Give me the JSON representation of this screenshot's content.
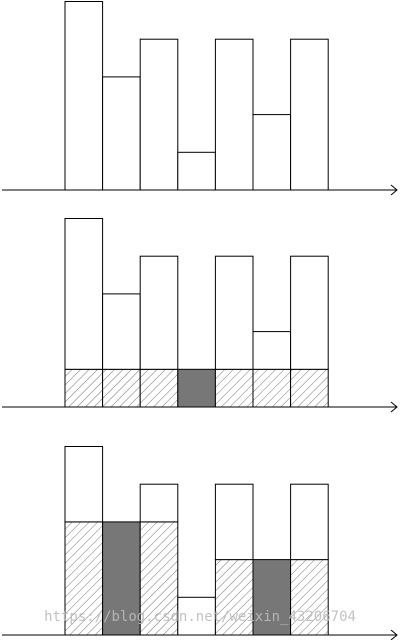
{
  "panels": [
    {
      "type": "stacked-bar",
      "series": [
        {
          "color": "#ffffff",
          "values": [
            5,
            3,
            4,
            1,
            4,
            2,
            4
          ]
        }
      ]
    },
    {
      "type": "stacked-bar",
      "series": [
        {
          "pattern": "hatch",
          "color": "#ffffff",
          "values": [
            1,
            1,
            1,
            0,
            1,
            1,
            1
          ]
        },
        {
          "color": "#777777",
          "values": [
            0,
            0,
            0,
            1,
            0,
            0,
            0
          ]
        },
        {
          "color": "#ffffff",
          "values": [
            4,
            2,
            3,
            0,
            3,
            1,
            3
          ]
        }
      ]
    },
    {
      "type": "stacked-bar",
      "series": [
        {
          "pattern": "hatch",
          "color": "#ffffff",
          "values": [
            3,
            0,
            3,
            0,
            2,
            0,
            2
          ]
        },
        {
          "color": "#777777",
          "values": [
            0,
            3,
            0,
            0,
            0,
            2,
            0
          ]
        },
        {
          "color": "#ffffff",
          "values": [
            2,
            0,
            1,
            1,
            2,
            0,
            2
          ]
        }
      ]
    }
  ],
  "watermark": "https://blog.csdn.net/weixin_43206704"
}
